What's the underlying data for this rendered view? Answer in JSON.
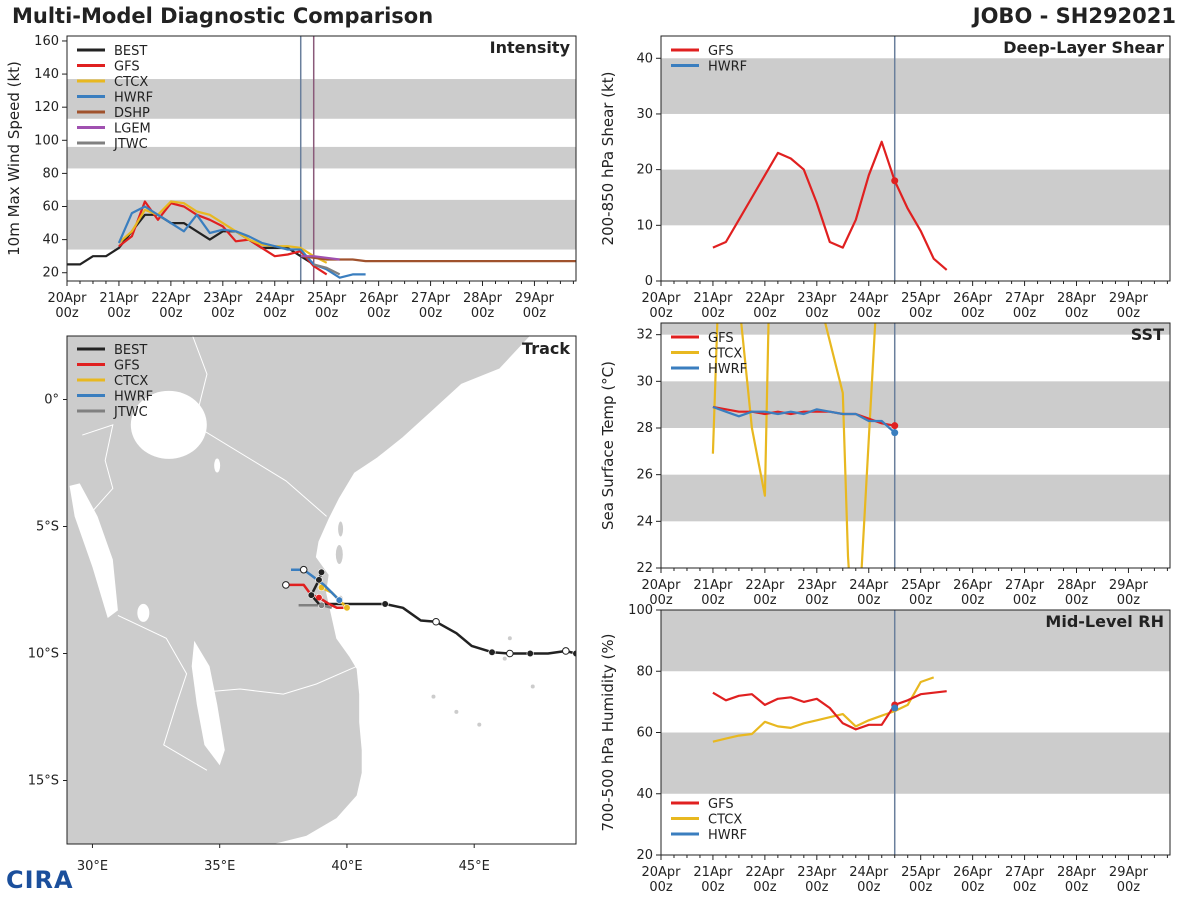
{
  "title": "Multi-Model Diagnostic Comparison",
  "storm": "JOBO - SH292021",
  "logo_text": "CIRA",
  "colors": {
    "BEST": "#222222",
    "GFS": "#e02020",
    "CTCX": "#e8b820",
    "HWRF": "#3a7ebf",
    "DSHP": "#a0522d",
    "LGEM": "#a050b0",
    "JTWC": "#808080",
    "band": "#cccccc",
    "vline": "#6a7f9c",
    "vline2": "#8a5a7a",
    "land": "#cccccc",
    "axis": "#222222"
  },
  "x_ticks": [
    {
      "l1": "20Apr",
      "l2": "00z"
    },
    {
      "l1": "21Apr",
      "l2": "00z"
    },
    {
      "l1": "22Apr",
      "l2": "00z"
    },
    {
      "l1": "23Apr",
      "l2": "00z"
    },
    {
      "l1": "24Apr",
      "l2": "00z"
    },
    {
      "l1": "25Apr",
      "l2": "00z"
    },
    {
      "l1": "26Apr",
      "l2": "00z"
    },
    {
      "l1": "27Apr",
      "l2": "00z"
    },
    {
      "l1": "28Apr",
      "l2": "00z"
    },
    {
      "l1": "29Apr",
      "l2": "00z"
    }
  ],
  "chart_data": [
    {
      "id": "intensity",
      "type": "line",
      "title": "Intensity",
      "ylabel": "10m Max Wind Speed (kt)",
      "xlim_days": [
        0,
        9.8
      ],
      "ylim": [
        15,
        163
      ],
      "yticks": [
        20,
        40,
        60,
        80,
        100,
        120,
        140,
        160
      ],
      "bands": [
        [
          34,
          64
        ],
        [
          83,
          96
        ],
        [
          113,
          137
        ]
      ],
      "vlines": [
        4.5,
        4.75
      ],
      "legend": [
        "BEST",
        "GFS",
        "CTCX",
        "HWRF",
        "DSHP",
        "LGEM",
        "JTWC"
      ],
      "series": [
        {
          "name": "BEST",
          "x": [
            0,
            0.25,
            0.5,
            0.75,
            1,
            1.25,
            1.5,
            1.75,
            2,
            2.25,
            2.5,
            2.75,
            3,
            3.25,
            3.5,
            3.75,
            4,
            4.25,
            4.5,
            4.75
          ],
          "y": [
            25,
            25,
            30,
            30,
            35,
            45,
            55,
            55,
            50,
            50,
            45,
            40,
            45,
            45,
            40,
            35,
            35,
            35,
            30,
            25
          ]
        },
        {
          "name": "GFS",
          "x": [
            1,
            1.25,
            1.5,
            1.75,
            2,
            2.25,
            2.5,
            2.75,
            3,
            3.25,
            3.5,
            3.75,
            4,
            4.25,
            4.5,
            4.75,
            5
          ],
          "y": [
            36,
            42,
            63,
            52,
            62,
            60,
            55,
            52,
            48,
            39,
            40,
            35,
            30,
            31,
            33,
            24,
            19
          ]
        },
        {
          "name": "CTCX",
          "x": [
            1,
            1.25,
            1.5,
            1.75,
            2,
            2.25,
            2.5,
            2.75,
            3,
            3.25,
            3.5,
            3.75,
            4,
            4.25,
            4.5,
            4.75,
            5
          ],
          "y": [
            38,
            45,
            58,
            55,
            63,
            62,
            57,
            55,
            50,
            45,
            40,
            37,
            36,
            36,
            35,
            30,
            26
          ]
        },
        {
          "name": "HWRF",
          "x": [
            1,
            1.25,
            1.5,
            1.75,
            2,
            2.25,
            2.5,
            2.75,
            3,
            3.25,
            3.5,
            3.75,
            4,
            4.25,
            4.5,
            4.75,
            5,
            5.25,
            5.5,
            5.75
          ],
          "y": [
            38,
            56,
            60,
            55,
            50,
            45,
            55,
            44,
            46,
            45,
            42,
            38,
            36,
            34,
            34,
            25,
            22,
            17,
            19,
            19
          ]
        },
        {
          "name": "DSHP",
          "x": [
            4.5,
            4.75,
            5,
            5.25,
            5.5,
            5.75,
            6,
            7,
            8,
            9,
            9.8
          ],
          "y": [
            30,
            29,
            28,
            28,
            28,
            27,
            27,
            27,
            27,
            27,
            27
          ]
        },
        {
          "name": "LGEM",
          "x": [
            4.5,
            4.75,
            5,
            5.25
          ],
          "y": [
            30,
            30,
            29,
            28
          ]
        },
        {
          "name": "JTWC",
          "x": [
            4.75,
            5,
            5.25
          ],
          "y": [
            25,
            23,
            19
          ]
        }
      ]
    },
    {
      "id": "shear",
      "type": "line",
      "title": "Deep-Layer Shear",
      "ylabel": "200-850 hPa Shear (kt)",
      "xlim_days": [
        0,
        9.8
      ],
      "ylim": [
        0,
        44
      ],
      "yticks": [
        0,
        10,
        20,
        30,
        40
      ],
      "bands": [
        [
          10,
          20
        ],
        [
          30,
          40
        ]
      ],
      "vlines": [
        4.5
      ],
      "legend": [
        "GFS",
        "HWRF"
      ],
      "series": [
        {
          "name": "GFS",
          "x": [
            1,
            1.25,
            1.5,
            1.75,
            2,
            2.25,
            2.5,
            2.75,
            3,
            3.25,
            3.5,
            3.75,
            4,
            4.25,
            4.5,
            4.75,
            5,
            5.25,
            5.5
          ],
          "y": [
            6,
            7,
            11,
            15,
            19,
            23,
            22,
            20,
            14,
            7,
            6,
            11,
            19,
            25,
            18,
            13,
            9,
            4,
            2
          ],
          "marker_x": 4.5
        }
      ]
    },
    {
      "id": "sst",
      "type": "line",
      "title": "SST",
      "ylabel": "Sea Surface Temp (°C)",
      "xlim_days": [
        0,
        9.8
      ],
      "ylim": [
        22,
        32.5
      ],
      "yticks": [
        22,
        24,
        26,
        28,
        30,
        32
      ],
      "bands": [
        [
          24,
          26
        ],
        [
          28,
          30
        ],
        [
          32,
          34
        ]
      ],
      "vlines": [
        4.5
      ],
      "legend": [
        "GFS",
        "CTCX",
        "HWRF"
      ],
      "series": [
        {
          "name": "CTCX",
          "x": [
            1,
            1.1,
            1.3,
            1.5,
            1.75,
            2,
            2.08,
            2.2,
            3.05,
            3.5,
            3.6,
            3.7,
            3.85,
            4.15
          ],
          "y": [
            26.9,
            33.5,
            33.5,
            33.5,
            28,
            25.1,
            33.5,
            33.5,
            33.5,
            29.5,
            22.5,
            19,
            21.5,
            33.5
          ]
        },
        {
          "name": "GFS",
          "x": [
            1,
            1.25,
            1.5,
            1.75,
            2,
            2.25,
            2.5,
            2.75,
            3,
            3.25,
            3.5,
            3.75,
            4,
            4.25,
            4.5
          ],
          "y": [
            28.9,
            28.8,
            28.7,
            28.7,
            28.6,
            28.7,
            28.6,
            28.7,
            28.7,
            28.7,
            28.6,
            28.6,
            28.4,
            28.2,
            28.1
          ],
          "marker_x": 4.5
        },
        {
          "name": "HWRF",
          "x": [
            1,
            1.25,
            1.5,
            1.75,
            2,
            2.25,
            2.5,
            2.75,
            3,
            3.25,
            3.5,
            3.75,
            4,
            4.25,
            4.5
          ],
          "y": [
            28.9,
            28.7,
            28.5,
            28.7,
            28.7,
            28.6,
            28.7,
            28.6,
            28.8,
            28.7,
            28.6,
            28.6,
            28.3,
            28.3,
            27.8
          ],
          "marker_x": 4.5
        }
      ]
    },
    {
      "id": "rh",
      "type": "line",
      "title": "Mid-Level RH",
      "ylabel": "700-500 hPa Humidity (%)",
      "xlim_days": [
        0,
        9.8
      ],
      "ylim": [
        20,
        100
      ],
      "yticks": [
        20,
        40,
        60,
        80,
        100
      ],
      "bands": [
        [
          40,
          60
        ],
        [
          80,
          100
        ]
      ],
      "vlines": [
        4.5
      ],
      "legend": [
        "GFS",
        "CTCX",
        "HWRF"
      ],
      "series": [
        {
          "name": "CTCX",
          "x": [
            1,
            1.25,
            1.5,
            1.75,
            2,
            2.25,
            2.5,
            2.75,
            3,
            3.25,
            3.5,
            3.75,
            4,
            4.25,
            4.5,
            4.75,
            5,
            5.25
          ],
          "y": [
            57,
            58,
            59,
            59.5,
            63.5,
            62,
            61.5,
            63,
            64,
            65,
            66,
            62,
            64,
            65.5,
            67,
            69,
            76.5,
            78
          ]
        },
        {
          "name": "GFS",
          "x": [
            1,
            1.25,
            1.5,
            1.75,
            2,
            2.25,
            2.5,
            2.75,
            3,
            3.25,
            3.5,
            3.75,
            4,
            4.25,
            4.5,
            4.75,
            5,
            5.25,
            5.5
          ],
          "y": [
            73,
            70.5,
            72,
            72.5,
            69,
            71,
            71.5,
            70,
            71,
            68,
            63,
            61,
            62.5,
            62.5,
            69,
            70.5,
            72.5,
            73,
            73.5
          ],
          "marker_x": 4.5
        },
        {
          "name": "HWRF",
          "x": [
            4.5
          ],
          "y": [
            68
          ],
          "marker_x": 4.5
        }
      ]
    },
    {
      "id": "track",
      "type": "scatter",
      "title": "Track",
      "xlim": [
        29,
        49
      ],
      "ylim": [
        -17.5,
        2.5
      ],
      "xticks": [
        30,
        35,
        40,
        45
      ],
      "xtick_labels": [
        "30°E",
        "35°E",
        "40°E",
        "45°E"
      ],
      "yticks": [
        0,
        -5,
        -10,
        -15
      ],
      "ytick_labels": [
        "0°",
        "5°S",
        "10°S",
        "15°S"
      ],
      "legend": [
        "BEST",
        "GFS",
        "CTCX",
        "HWRF",
        "JTWC"
      ],
      "series": [
        {
          "name": "BEST",
          "lon": [
            49,
            48.6,
            47.9,
            47.2,
            46.4,
            45.7,
            44.9,
            44.3,
            43.5,
            42.9,
            42.2,
            41.5,
            40.8,
            40.1,
            39.6,
            39.0
          ],
          "lat": [
            -10.0,
            -9.9,
            -10.0,
            -10.0,
            -10.0,
            -9.95,
            -9.7,
            -9.2,
            -8.75,
            -8.7,
            -8.2,
            -8.05,
            -8.05,
            -8.05,
            -8.05,
            -8.05
          ],
          "dots_filled": [
            0,
            3,
            5,
            11
          ],
          "dots_open": [
            1,
            4,
            8
          ]
        },
        {
          "name": "GFS",
          "lon": [
            40.0,
            39.6,
            39.3,
            38.9,
            38.6,
            38.3,
            37.6
          ],
          "lat": [
            -8.2,
            -8.2,
            -8.05,
            -7.8,
            -7.7,
            -7.3,
            -7.3
          ],
          "dots_filled": [
            3
          ],
          "dots_open": [
            6
          ]
        },
        {
          "name": "CTCX",
          "lon": [
            40.0,
            39.7,
            39.4,
            39.0,
            38.9
          ],
          "lat": [
            -8.2,
            -7.9,
            -7.6,
            -7.4,
            -7.1
          ],
          "dots_filled": [
            0,
            3
          ],
          "dots_open": []
        },
        {
          "name": "HWRF",
          "lon": [
            39.7,
            39.4,
            39.1,
            38.7,
            38.3,
            37.8
          ],
          "lat": [
            -7.9,
            -7.6,
            -7.3,
            -7.0,
            -6.7,
            -6.7
          ],
          "dots_filled": [
            0
          ],
          "dots_open": [
            4
          ]
        },
        {
          "name": "JTWC",
          "lon": [
            38.1,
            39.0,
            39.4
          ],
          "lat": [
            -8.1,
            -8.1,
            -8.2
          ],
          "dots_filled": [
            1
          ],
          "dots_open": []
        },
        {
          "name": "BEST_TAIL",
          "lon": [
            38.9,
            38.6,
            38.9,
            39.0
          ],
          "lat": [
            -8.05,
            -7.7,
            -7.1,
            -6.8
          ],
          "dots_filled": [
            1,
            2,
            3
          ],
          "dots_open": []
        }
      ]
    }
  ]
}
